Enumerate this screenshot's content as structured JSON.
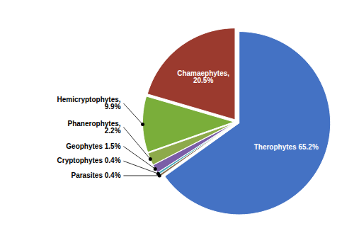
{
  "chart_data": {
    "type": "pie",
    "categories": [
      "Therophytes",
      "Parasites",
      "Cryptophytes",
      "Geophytes",
      "Phanerophytes",
      "Hemicryptophytes",
      "Chamaephytes"
    ],
    "values": [
      65.2,
      0.4,
      0.4,
      1.5,
      2.2,
      9.9,
      20.5
    ],
    "colors": [
      "#4472C4",
      "#8B7355",
      "#4AABBA",
      "#7B5EA7",
      "#8DAA4A",
      "#7AAE3A",
      "#9B3A2E"
    ],
    "value_labels": [
      "Therophytes 65.2%",
      "Parasites 0.4%",
      "Cryptophytes 0.4%",
      "Geophytes 1.5%",
      "Phanerophytes,\n2.2%",
      "Hemicryptophytes,\n9.9%",
      "Chamaephytes,\n20.5%"
    ]
  }
}
